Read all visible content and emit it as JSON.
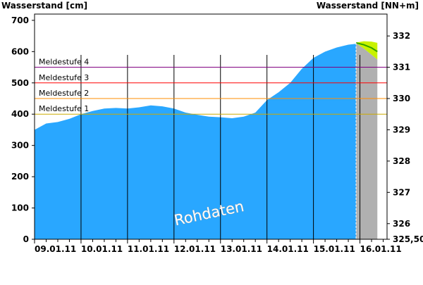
{
  "chart_data": {
    "type": "area",
    "ylabel_left": "Wasserstand [cm]",
    "ylabel_right": "Wasserstand [NN+m]",
    "ylim": [
      0,
      720
    ],
    "y_ticks": [
      0,
      100,
      200,
      300,
      400,
      500,
      600,
      700
    ],
    "right_axis_ticks": [
      "332",
      "331",
      "330",
      "329",
      "328",
      "327",
      "326",
      "325,50"
    ],
    "right_axis_tick_values_cm": [
      650,
      550,
      450,
      350,
      250,
      150,
      50,
      0
    ],
    "x_range_days": [
      "09.01.11 00:00",
      "16.01.11 14:00"
    ],
    "x_tick_labels": [
      "09.01.11",
      "10.01.11",
      "11.01.11",
      "12.01.11",
      "13.01.11",
      "14.01.11",
      "15.01.11",
      "16.01.11"
    ],
    "grid": "vertical lines at day boundaries",
    "legend": "none",
    "watermark": "Rohdaten",
    "reference_lines": [
      {
        "label": "Meldestufe 4",
        "value": 550,
        "color": "#800080"
      },
      {
        "label": "Meldestufe 3",
        "value": 500,
        "color": "#ff0000"
      },
      {
        "label": "Meldestufe 2",
        "value": 450,
        "color": "#ff8c00"
      },
      {
        "label": "Meldestufe 1",
        "value": 400,
        "color": "#ccaa00"
      }
    ],
    "measured_series": {
      "x": [
        "09.01.11 00:00",
        "09.01.11 06:00",
        "09.01.11 12:00",
        "09.01.11 18:00",
        "10.01.11 00:00",
        "10.01.11 06:00",
        "10.01.11 12:00",
        "10.01.11 18:00",
        "11.01.11 00:00",
        "11.01.11 06:00",
        "11.01.11 12:00",
        "11.01.11 18:00",
        "12.01.11 00:00",
        "12.01.11 06:00",
        "12.01.11 12:00",
        "12.01.11 18:00",
        "13.01.11 00:00",
        "13.01.11 06:00",
        "13.01.11 12:00",
        "13.01.11 18:00",
        "14.01.11 00:00",
        "14.01.11 06:00",
        "14.01.11 12:00",
        "14.01.11 18:00",
        "15.01.11 00:00",
        "15.01.11 06:00",
        "15.01.11 12:00",
        "15.01.11 18:00",
        "15.01.11 22:00"
      ],
      "y": [
        350,
        370,
        375,
        385,
        400,
        410,
        418,
        420,
        418,
        422,
        428,
        425,
        418,
        405,
        398,
        392,
        390,
        387,
        392,
        405,
        445,
        470,
        500,
        545,
        580,
        600,
        613,
        622,
        625
      ]
    },
    "forecast": {
      "x": [
        "15.01.11 22:00",
        "16.01.11 02:00",
        "16.01.11 06:00",
        "16.01.11 09:00"
      ],
      "y": [
        628,
        622,
        612,
        600
      ],
      "upper": [
        629,
        633,
        632,
        628
      ],
      "lower": [
        627,
        610,
        590,
        575
      ],
      "line_color": "#2e9e00",
      "band_color": "#c8f200"
    },
    "colors": {
      "area": "#29a7ff",
      "forecast_period": "#b0b0b0",
      "now_line": "#ffffff"
    },
    "now_marker": "15.01.11 22:00",
    "forecast_end": "16.01.11 09:00"
  }
}
